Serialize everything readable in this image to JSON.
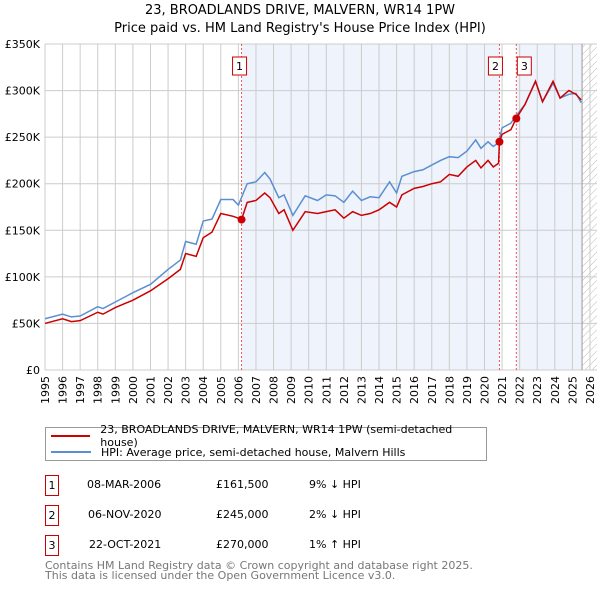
{
  "title": "23, BROADLANDS DRIVE, MALVERN, WR14 1PW",
  "subtitle": "Price paid vs. HM Land Registry's House Price Index (HPI)",
  "chart_data": {
    "type": "line",
    "title": "23, BROADLANDS DRIVE, MALVERN, WR14 1PW",
    "subtitle": "Price paid vs. HM Land Registry's House Price Index (HPI)",
    "xlim": [
      1995,
      2026
    ],
    "ylim": [
      0,
      350000
    ],
    "x_ticks": [
      "1995",
      "1996",
      "1997",
      "1998",
      "1999",
      "2000",
      "2001",
      "2002",
      "2003",
      "2004",
      "2005",
      "2006",
      "2007",
      "2008",
      "2009",
      "2010",
      "2011",
      "2012",
      "2013",
      "2014",
      "2015",
      "2016",
      "2017",
      "2018",
      "2019",
      "2020",
      "2021",
      "2022",
      "2023",
      "2024",
      "2025",
      "2026"
    ],
    "y_ticks": [
      {
        "v": 0,
        "label": "£0"
      },
      {
        "v": 50000,
        "label": "£50K"
      },
      {
        "v": 100000,
        "label": "£100K"
      },
      {
        "v": 150000,
        "label": "£150K"
      },
      {
        "v": 200000,
        "label": "£200K"
      },
      {
        "v": 250000,
        "label": "£250K"
      },
      {
        "v": 300000,
        "label": "£300K"
      },
      {
        "v": 350000,
        "label": "£350K"
      }
    ],
    "grid": true,
    "series": [
      {
        "name": "23, BROADLANDS DRIVE, MALVERN, WR14 1PW (semi-detached house)",
        "color": "#cc0000",
        "x": [
          1995,
          1996,
          1996.5,
          1997,
          1998,
          1998.3,
          1999,
          2000,
          2001,
          2002,
          2002.7,
          2003,
          2003.6,
          2004,
          2004.5,
          2005,
          2005.7,
          2006.0,
          2006.18,
          2006.5,
          2007,
          2007.5,
          2007.8,
          2008.3,
          2008.6,
          2009.1,
          2009.8,
          2010.5,
          2011,
          2011.5,
          2012,
          2012.5,
          2013,
          2013.5,
          2014,
          2014.6,
          2015,
          2015.3,
          2016,
          2016.5,
          2017,
          2017.5,
          2018,
          2018.5,
          2019,
          2019.5,
          2019.8,
          2020.2,
          2020.5,
          2020.8,
          2020.85,
          2021,
          2021.5,
          2021.8,
          2022.3,
          2022.9,
          2023.3,
          2023.9,
          2024.3,
          2024.8,
          2025.2,
          2025.5
        ],
        "y": [
          50000,
          55000,
          52000,
          53000,
          62000,
          60000,
          67000,
          75000,
          85000,
          98000,
          108000,
          125000,
          122000,
          142000,
          148000,
          168000,
          165000,
          163000,
          161500,
          180000,
          182000,
          190000,
          185000,
          168000,
          172000,
          150000,
          170000,
          168000,
          170000,
          172000,
          163000,
          170000,
          166000,
          168000,
          172000,
          180000,
          175000,
          188000,
          195000,
          197000,
          200000,
          202000,
          210000,
          208000,
          218000,
          225000,
          217000,
          225000,
          218000,
          222000,
          245000,
          253000,
          258000,
          270000,
          285000,
          310000,
          288000,
          310000,
          292000,
          300000,
          296000,
          290000
        ]
      },
      {
        "name": "HPI: Average price, semi-detached house, Malvern Hills",
        "color": "#5b8fd1",
        "x": [
          1995,
          1996,
          1996.5,
          1997,
          1998,
          1998.3,
          1999,
          2000,
          2001,
          2002,
          2002.7,
          2003,
          2003.6,
          2004,
          2004.5,
          2005,
          2005.7,
          2006.0,
          2006.5,
          2007,
          2007.5,
          2007.8,
          2008.3,
          2008.6,
          2009.1,
          2009.8,
          2010.5,
          2011,
          2011.5,
          2012,
          2012.5,
          2013,
          2013.5,
          2014,
          2014.6,
          2015,
          2015.3,
          2016,
          2016.5,
          2017,
          2017.5,
          2018,
          2018.5,
          2019,
          2019.5,
          2019.8,
          2020.2,
          2020.5,
          2020.8,
          2021,
          2021.5,
          2021.8,
          2022.3,
          2022.9,
          2023.3,
          2023.9,
          2024.3,
          2024.8,
          2025.2,
          2025.5
        ],
        "y": [
          55000,
          60000,
          57000,
          58000,
          68000,
          66000,
          73000,
          83000,
          92000,
          108000,
          118000,
          138000,
          135000,
          160000,
          162000,
          183000,
          183000,
          177000,
          200000,
          202000,
          212000,
          205000,
          185000,
          188000,
          166000,
          187000,
          182000,
          188000,
          187000,
          180000,
          192000,
          182000,
          186000,
          185000,
          202000,
          190000,
          208000,
          213000,
          215000,
          220000,
          225000,
          229000,
          228000,
          235000,
          247000,
          238000,
          245000,
          240000,
          244000,
          260000,
          265000,
          273000,
          285000,
          310000,
          288000,
          308000,
          292000,
          296000,
          297000,
          287000
        ]
      }
    ],
    "markers": [
      {
        "label": "1",
        "x": 2006.18,
        "y": 161500
      },
      {
        "label": "2",
        "x": 2020.85,
        "y": 245000
      },
      {
        "label": "3",
        "x": 2021.81,
        "y": 270000
      }
    ],
    "shaded_ranges": [
      [
        2006.18,
        2020.85
      ],
      [
        2021.81,
        2025.55
      ]
    ],
    "future_hatch_from": 2025.55
  },
  "legend": [
    {
      "label": "23, BROADLANDS DRIVE, MALVERN, WR14 1PW (semi-detached house)",
      "color": "#cc0000"
    },
    {
      "label": "HPI: Average price, semi-detached house, Malvern Hills",
      "color": "#5b8fd1"
    }
  ],
  "sales": [
    {
      "num": "1",
      "date": "08-MAR-2006",
      "price": "£161,500",
      "hpi": "9% ↓ HPI"
    },
    {
      "num": "2",
      "date": "06-NOV-2020",
      "price": "£245,000",
      "hpi": "2% ↓ HPI"
    },
    {
      "num": "3",
      "date": "22-OCT-2021",
      "price": "£270,000",
      "hpi": "1% ↑ HPI"
    }
  ],
  "footer": [
    "Contains HM Land Registry data © Crown copyright and database right 2025.",
    "This data is licensed under the Open Government Licence v3.0."
  ]
}
